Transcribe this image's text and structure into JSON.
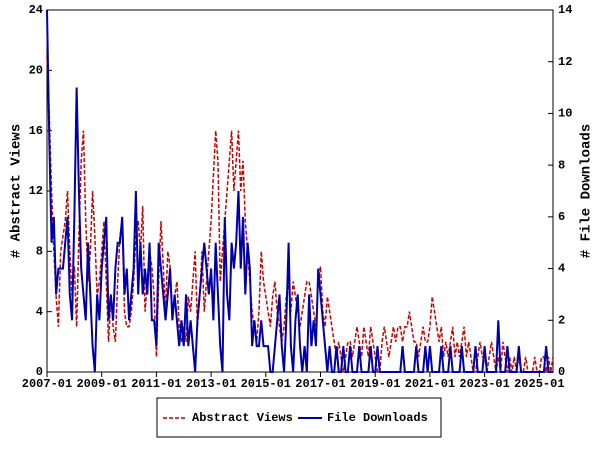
{
  "chart_data": {
    "type": "line",
    "ylabel": "# Abstract Views",
    "y2label": "# File Downloads",
    "x": [
      "2007-01",
      "2007-02",
      "2007-03",
      "2007-04",
      "2007-05",
      "2007-06",
      "2007-07",
      "2007-08",
      "2007-09",
      "2007-10",
      "2007-11",
      "2007-12",
      "2008-01",
      "2008-02",
      "2008-03",
      "2008-04",
      "2008-05",
      "2008-06",
      "2008-07",
      "2008-08",
      "2008-09",
      "2008-10",
      "2008-11",
      "2008-12",
      "2009-01",
      "2009-02",
      "2009-03",
      "2009-04",
      "2009-05",
      "2009-06",
      "2009-07",
      "2009-08",
      "2009-09",
      "2009-10",
      "2009-11",
      "2009-12",
      "2010-01",
      "2010-02",
      "2010-03",
      "2010-04",
      "2010-05",
      "2010-06",
      "2010-07",
      "2010-08",
      "2010-09",
      "2010-10",
      "2010-11",
      "2010-12",
      "2011-01",
      "2011-02",
      "2011-03",
      "2011-04",
      "2011-05",
      "2011-06",
      "2011-07",
      "2011-08",
      "2011-09",
      "2011-10",
      "2011-11",
      "2011-12",
      "2012-01",
      "2012-02",
      "2012-03",
      "2012-04",
      "2012-05",
      "2012-06",
      "2012-07",
      "2012-08",
      "2012-09",
      "2012-10",
      "2012-11",
      "2012-12",
      "2013-01",
      "2013-02",
      "2013-03",
      "2013-04",
      "2013-05",
      "2013-06",
      "2013-07",
      "2013-08",
      "2013-09",
      "2013-10",
      "2013-11",
      "2013-12",
      "2014-01",
      "2014-02",
      "2014-03",
      "2014-04",
      "2014-05",
      "2014-06",
      "2014-07",
      "2014-08",
      "2014-09",
      "2014-10",
      "2014-11",
      "2014-12",
      "2015-01",
      "2015-02",
      "2015-03",
      "2015-04",
      "2015-05",
      "2015-06",
      "2015-07",
      "2015-08",
      "2015-09",
      "2015-10",
      "2015-11",
      "2015-12",
      "2016-01",
      "2016-02",
      "2016-03",
      "2016-04",
      "2016-05",
      "2016-06",
      "2016-07",
      "2016-08",
      "2016-09",
      "2016-10",
      "2016-11",
      "2016-12",
      "2017-01",
      "2017-02",
      "2017-03",
      "2017-04",
      "2017-05",
      "2017-06",
      "2017-07",
      "2017-08",
      "2017-09",
      "2017-10",
      "2017-11",
      "2017-12",
      "2018-01",
      "2018-02",
      "2018-03",
      "2018-04",
      "2018-05",
      "2018-06",
      "2018-07",
      "2018-08",
      "2018-09",
      "2018-10",
      "2018-11",
      "2018-12",
      "2019-01",
      "2019-02",
      "2019-03",
      "2019-04",
      "2019-05",
      "2019-06",
      "2019-07",
      "2019-08",
      "2019-09",
      "2019-10",
      "2019-11",
      "2019-12",
      "2020-01",
      "2020-02",
      "2020-03",
      "2020-04",
      "2020-05",
      "2020-06",
      "2020-07",
      "2020-08",
      "2020-09",
      "2020-10",
      "2020-11",
      "2020-12",
      "2021-01",
      "2021-02",
      "2021-03",
      "2021-04",
      "2021-05",
      "2021-06",
      "2021-07",
      "2021-08",
      "2021-09",
      "2021-10",
      "2021-11",
      "2021-12",
      "2022-01",
      "2022-02",
      "2022-03",
      "2022-04",
      "2022-05",
      "2022-06",
      "2022-07",
      "2022-08",
      "2022-09",
      "2022-10",
      "2022-11",
      "2022-12",
      "2023-01",
      "2023-02",
      "2023-03",
      "2023-04",
      "2023-05",
      "2023-06",
      "2023-07",
      "2023-08",
      "2023-09",
      "2023-10",
      "2023-11",
      "2023-12",
      "2024-01",
      "2024-02",
      "2024-03",
      "2024-04",
      "2024-05",
      "2024-06",
      "2024-07",
      "2024-08",
      "2024-09",
      "2024-10",
      "2024-11",
      "2024-12",
      "2025-01",
      "2025-02",
      "2025-03",
      "2025-04",
      "2025-05",
      "2025-06",
      "2025-07"
    ],
    "xlim": [
      "2007-01",
      "2025-07"
    ],
    "xticks": [
      "2007-01",
      "2009-01",
      "2011-01",
      "2013-01",
      "2015-01",
      "2017-01",
      "2019-01",
      "2021-01",
      "2023-01",
      "2025-01"
    ],
    "ylim": [
      0,
      24
    ],
    "yticks": [
      0,
      4,
      8,
      12,
      16,
      20,
      24
    ],
    "y2lim": [
      0,
      14
    ],
    "y2ticks": [
      0,
      2,
      4,
      6,
      8,
      10,
      12,
      14
    ],
    "legend": "bottom",
    "series": [
      {
        "name": "Abstract Views",
        "color": "#cc0000",
        "dash": true,
        "values": [
          21,
          17,
          12,
          8,
          5,
          3,
          8,
          9,
          10,
          12,
          8,
          5,
          7,
          3,
          9,
          14,
          16,
          10,
          6,
          8,
          12,
          9,
          5,
          6,
          8,
          10,
          6,
          2,
          5,
          3,
          2,
          6,
          9,
          10,
          4,
          3,
          3,
          4,
          6,
          9,
          10,
          8,
          11,
          4,
          6,
          8,
          7,
          5,
          1,
          6,
          10,
          7,
          4,
          8,
          7,
          4,
          5,
          6,
          3,
          2,
          3,
          2,
          5,
          4,
          6,
          8,
          3,
          5,
          8,
          4,
          6,
          8,
          10,
          13,
          16,
          14,
          6,
          8,
          10,
          12,
          14,
          16,
          12,
          14,
          16,
          12,
          14,
          10,
          8,
          6,
          4,
          3,
          2,
          4,
          8,
          6,
          5,
          4,
          3,
          5,
          6,
          4,
          3,
          2,
          3,
          5,
          6,
          4,
          6,
          5,
          4,
          3,
          4,
          5,
          6,
          6,
          5,
          4,
          3,
          6,
          7,
          4,
          3,
          5,
          4,
          3,
          2,
          1,
          2,
          1,
          0,
          1,
          2,
          2,
          1,
          2,
          3,
          2,
          1,
          3,
          2,
          1,
          3,
          2,
          1,
          0,
          0,
          2,
          3,
          2,
          1,
          2,
          3,
          2,
          3,
          3,
          2,
          3,
          3,
          4,
          3,
          2,
          2,
          1,
          2,
          3,
          2,
          2,
          3,
          5,
          4,
          3,
          2,
          3,
          1,
          2,
          1,
          2,
          3,
          1,
          2,
          1,
          2,
          3,
          1,
          2,
          1,
          0,
          0,
          1,
          2,
          1,
          1,
          0,
          1,
          2,
          1,
          0,
          1,
          0,
          2,
          1,
          0,
          1,
          0,
          1,
          0,
          1,
          0,
          0,
          1,
          0,
          0,
          0,
          1,
          0,
          0,
          1,
          1,
          0,
          1,
          0,
          1
        ]
      },
      {
        "name": "File Downloads",
        "color": "#0000aa",
        "axis": "y2",
        "values": [
          14,
          9,
          5,
          6,
          3,
          4,
          4,
          4,
          5,
          6,
          3,
          2,
          6,
          11,
          7,
          4,
          3,
          2,
          5,
          3,
          1,
          0,
          3,
          2,
          4,
          5,
          6,
          2,
          3,
          2,
          4,
          5,
          5,
          6,
          3,
          4,
          2,
          3,
          4,
          7,
          3,
          5,
          3,
          4,
          3,
          5,
          2,
          2,
          1,
          5,
          4,
          3,
          2,
          3,
          4,
          2,
          3,
          2,
          1,
          2,
          1,
          3,
          1,
          2,
          1,
          0,
          2,
          3,
          4,
          5,
          4,
          3,
          4,
          2,
          5,
          3,
          1,
          0,
          6,
          3,
          2,
          5,
          4,
          5,
          7,
          4,
          6,
          3,
          5,
          4,
          1,
          2,
          1,
          1,
          2,
          1,
          1,
          1,
          0,
          0,
          1,
          2,
          3,
          1,
          0,
          2,
          5,
          1,
          0,
          2,
          3,
          1,
          0,
          1,
          0,
          3,
          1,
          2,
          1,
          4,
          3,
          2,
          1,
          0,
          1,
          0,
          0,
          1,
          0,
          0,
          1,
          0,
          0,
          1,
          0,
          0,
          0,
          1,
          0,
          0,
          0,
          0,
          1,
          0,
          0,
          1,
          0,
          0,
          0,
          0,
          0,
          0,
          0,
          0,
          0,
          0,
          1,
          0,
          0,
          0,
          0,
          0,
          1,
          0,
          0,
          0,
          1,
          0,
          1,
          0,
          0,
          0,
          0,
          1,
          0,
          0,
          0,
          1,
          0,
          0,
          0,
          0,
          1,
          0,
          0,
          0,
          0,
          0,
          1,
          0,
          0,
          0,
          1,
          0,
          0,
          0,
          0,
          0,
          2,
          0,
          0,
          0,
          1,
          0,
          0,
          0,
          0,
          1,
          0,
          0,
          0,
          0,
          0,
          0,
          0,
          0,
          0,
          0,
          0,
          1,
          0,
          0,
          0
        ]
      }
    ]
  }
}
